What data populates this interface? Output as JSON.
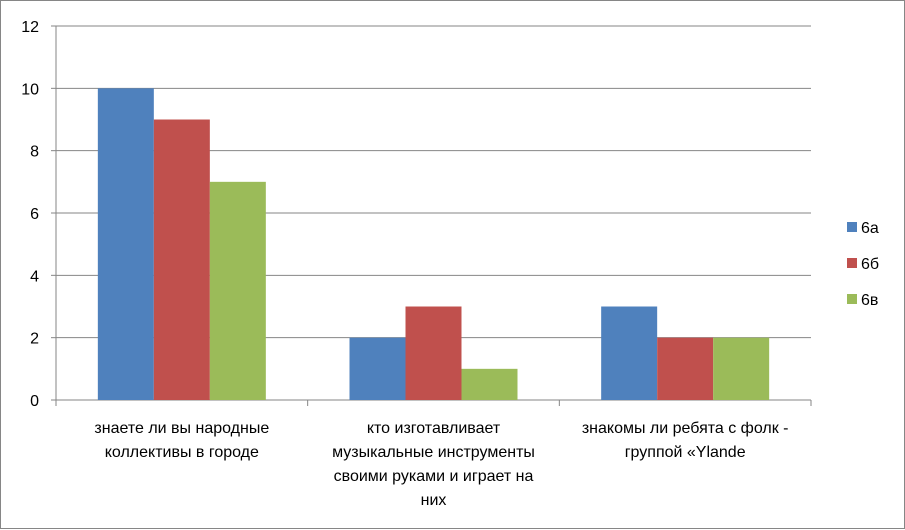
{
  "chart_data": {
    "type": "bar",
    "categories": [
      [
        "знаете ли вы народные",
        "коллективы в городе"
      ],
      [
        "кто изготавливает",
        "музыкальные инструменты",
        "своими руками и играет на",
        "них"
      ],
      [
        "знакомы ли ребята с  фолк -",
        "группой  «Ylande"
      ]
    ],
    "series": [
      {
        "name": "6а",
        "values": [
          10,
          2,
          3
        ],
        "color": "#4F81BD"
      },
      {
        "name": "6б",
        "values": [
          9,
          3,
          2
        ],
        "color": "#C0504D"
      },
      {
        "name": "6в",
        "values": [
          7,
          1,
          2
        ],
        "color": "#9BBB59"
      }
    ],
    "ylim": [
      0,
      12
    ],
    "yticks": [
      "0",
      "2",
      "4",
      "6",
      "8",
      "10",
      "12"
    ],
    "grid": true,
    "legend": "right",
    "title": "",
    "xlabel": "",
    "ylabel": ""
  }
}
